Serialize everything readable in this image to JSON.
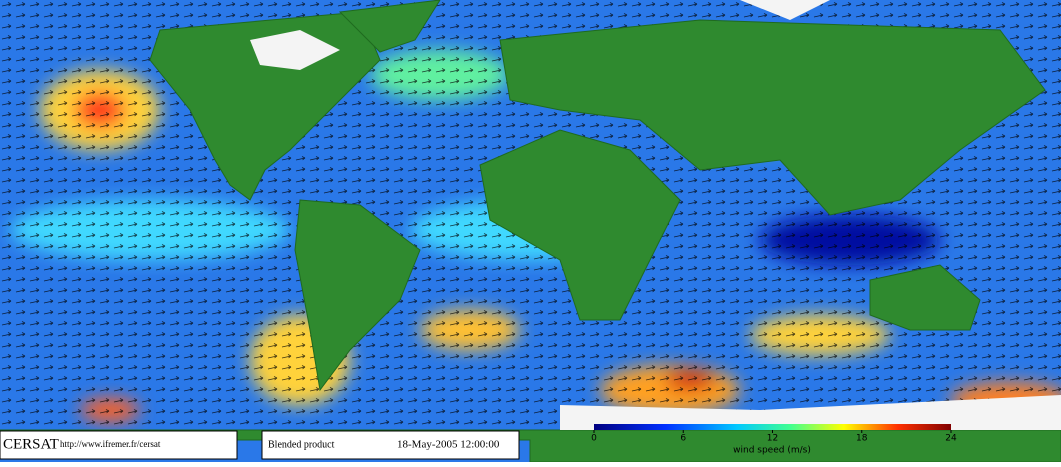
{
  "footer": {
    "logo": "CERSAT",
    "url": "http://www.ifremer.fr/cersat",
    "product": "Blended product",
    "date": "18-May-2005 12:00:00"
  },
  "colorbar": {
    "label": "wind speed (m/s)",
    "lim": [
      0,
      24
    ],
    "ticks": [
      0,
      6,
      12,
      18,
      24
    ]
  }
}
